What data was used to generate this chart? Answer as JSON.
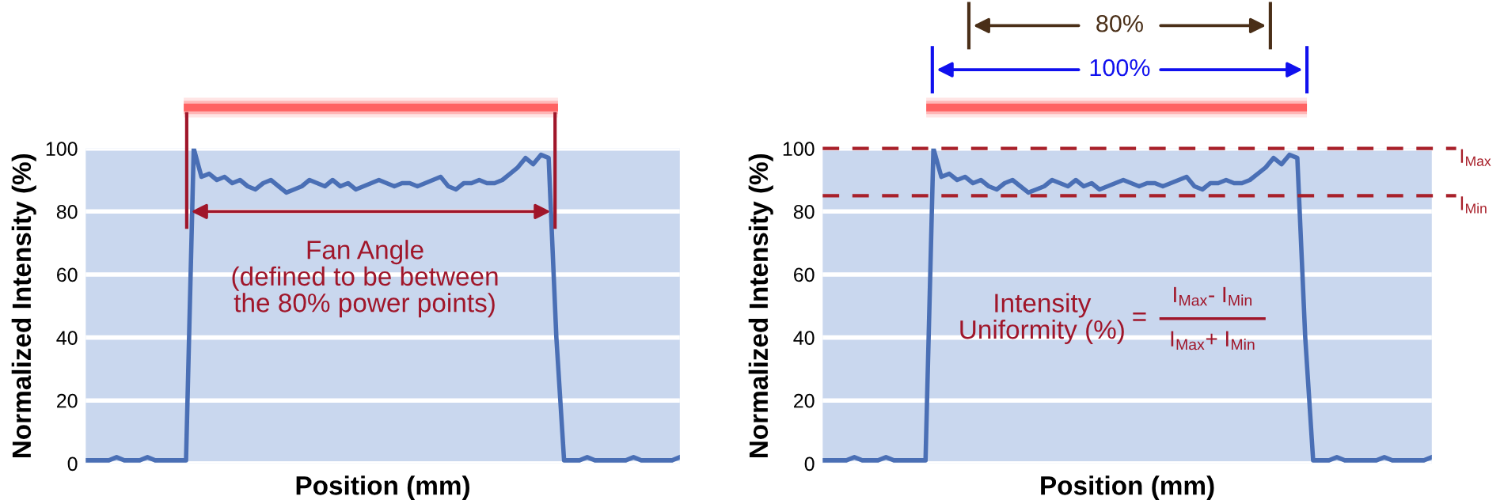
{
  "chart_data": [
    {
      "type": "line",
      "xlabel": "Position (mm)",
      "ylabel": "Normalized Intensity (%)",
      "categories": [
        null,
        null,
        null,
        null,
        null,
        null,
        null,
        null,
        null,
        null,
        null,
        null,
        null,
        null,
        null,
        null,
        null,
        null,
        null,
        null,
        null,
        null,
        null,
        null,
        null,
        null,
        null,
        null,
        null,
        null,
        null,
        null,
        null,
        null,
        null,
        null,
        null,
        null,
        null,
        null,
        null,
        null,
        null,
        null,
        null,
        null,
        null,
        null,
        null,
        null,
        null,
        null,
        null,
        null,
        null,
        null,
        null,
        null,
        null,
        null,
        null,
        null,
        null,
        null,
        null,
        null,
        null,
        null,
        null,
        null,
        null,
        null,
        null,
        null,
        null,
        null,
        null,
        null
      ],
      "series": [
        {
          "color": "#4a6fb5",
          "values": [
            1,
            1,
            1,
            1,
            2,
            1,
            1,
            1,
            2,
            1,
            1,
            1,
            1,
            1,
            100,
            91,
            92,
            90,
            91,
            89,
            90,
            88,
            87,
            89,
            90,
            88,
            86,
            87,
            88,
            90,
            89,
            88,
            90,
            88,
            89,
            87,
            88,
            89,
            90,
            89,
            88,
            89,
            89,
            88,
            89,
            90,
            91,
            88,
            87,
            89,
            89,
            90,
            89,
            89,
            90,
            92,
            94,
            97,
            95,
            98,
            97,
            40,
            1,
            1,
            1,
            2,
            1,
            1,
            1,
            1,
            1,
            2,
            1,
            1,
            1,
            1,
            1,
            2
          ]
        }
      ],
      "ylim": [
        0,
        100
      ],
      "yticks": [
        0,
        20,
        40,
        60,
        80,
        100
      ],
      "grid": "y",
      "annotations": [
        "Fan Angle\n(defined to be between\nthe 80% power points)"
      ]
    },
    {
      "type": "line",
      "xlabel": "Position (mm)",
      "ylabel": "Normalized Intensity (%)",
      "categories": [
        null,
        null,
        null,
        null,
        null,
        null,
        null,
        null,
        null,
        null,
        null,
        null,
        null,
        null,
        null,
        null,
        null,
        null,
        null,
        null,
        null,
        null,
        null,
        null,
        null,
        null,
        null,
        null,
        null,
        null,
        null,
        null,
        null,
        null,
        null,
        null,
        null,
        null,
        null,
        null,
        null,
        null,
        null,
        null,
        null,
        null,
        null,
        null,
        null,
        null,
        null,
        null,
        null,
        null,
        null,
        null,
        null,
        null,
        null,
        null,
        null,
        null,
        null,
        null,
        null,
        null,
        null,
        null,
        null,
        null,
        null,
        null,
        null,
        null,
        null,
        null,
        null,
        null
      ],
      "series": [
        {
          "color": "#4a6fb5",
          "values": [
            1,
            1,
            1,
            1,
            2,
            1,
            1,
            1,
            2,
            1,
            1,
            1,
            1,
            1,
            100,
            91,
            92,
            90,
            91,
            89,
            90,
            88,
            87,
            89,
            90,
            88,
            86,
            87,
            88,
            90,
            89,
            88,
            90,
            88,
            89,
            87,
            88,
            89,
            90,
            89,
            88,
            89,
            89,
            88,
            89,
            90,
            91,
            88,
            87,
            89,
            89,
            90,
            89,
            89,
            90,
            92,
            94,
            97,
            95,
            98,
            97,
            40,
            1,
            1,
            1,
            2,
            1,
            1,
            1,
            1,
            1,
            2,
            1,
            1,
            1,
            1,
            1,
            2
          ]
        }
      ],
      "ylim": [
        0,
        100
      ],
      "yticks": [
        0,
        20,
        40,
        60,
        80,
        100
      ],
      "grid": "y",
      "ref_lines": [
        {
          "axis": "y",
          "value": 100,
          "label": "I$_{Max}$",
          "color": "#a8202a",
          "line_style": "dashed"
        },
        {
          "axis": "y",
          "value": 85,
          "label": "I$_{Min}$",
          "color": "#a8202a",
          "line_style": "dashed"
        }
      ],
      "annotations": [
        "Intensity\nUniformity (%)",
        "=",
        "I$_{Max}$- I$_{Min}$",
        "I$_{Max}$+ I$_{Min}$",
        "80%",
        "100%"
      ]
    }
  ]
}
